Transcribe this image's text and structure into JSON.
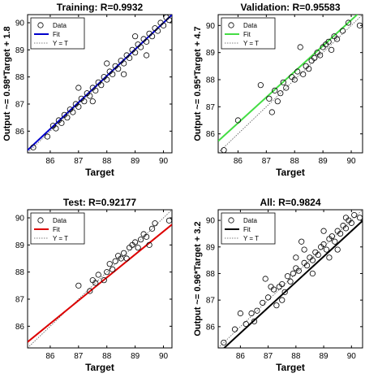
{
  "chart_data": [
    {
      "type": "scatter",
      "title": "Training: R=0.9932",
      "xlabel": "Target",
      "ylabel": "Output ~= 0.98*Target + 1.8",
      "xlim": [
        85.2,
        90.3
      ],
      "ylim": [
        85.2,
        90.3
      ],
      "xticks": [
        86,
        87,
        88,
        89,
        90
      ],
      "yticks": [
        86,
        87,
        88,
        89,
        90
      ],
      "grid": false,
      "legend": {
        "placement": "top-left",
        "entries": [
          "Data",
          "Fit",
          "Y = T"
        ]
      },
      "fit": {
        "slope": 0.98,
        "intercept": 1.8,
        "color": "#0000cc"
      },
      "identity_line_color": "#555555",
      "marker_color": "#000000",
      "points": [
        [
          85.4,
          85.4
        ],
        [
          85.9,
          85.8
        ],
        [
          86.1,
          86.2
        ],
        [
          86.2,
          86.1
        ],
        [
          86.3,
          86.4
        ],
        [
          86.4,
          86.3
        ],
        [
          86.5,
          86.6
        ],
        [
          86.6,
          86.5
        ],
        [
          86.7,
          86.8
        ],
        [
          86.8,
          86.7
        ],
        [
          86.9,
          87.0
        ],
        [
          87.0,
          86.9
        ],
        [
          87.1,
          87.2
        ],
        [
          87.2,
          87.1
        ],
        [
          87.3,
          87.4
        ],
        [
          87.4,
          87.3
        ],
        [
          87.5,
          87.6
        ],
        [
          87.6,
          87.5
        ],
        [
          87.7,
          87.8
        ],
        [
          87.8,
          87.7
        ],
        [
          87.9,
          88.0
        ],
        [
          88.0,
          87.9
        ],
        [
          88.1,
          88.2
        ],
        [
          88.2,
          88.1
        ],
        [
          88.3,
          88.4
        ],
        [
          88.4,
          88.3
        ],
        [
          88.5,
          88.6
        ],
        [
          88.6,
          88.5
        ],
        [
          88.7,
          88.8
        ],
        [
          88.8,
          88.7
        ],
        [
          88.9,
          89.0
        ],
        [
          89.0,
          88.9
        ],
        [
          89.1,
          89.2
        ],
        [
          89.2,
          89.1
        ],
        [
          89.3,
          89.4
        ],
        [
          89.4,
          89.3
        ],
        [
          89.5,
          89.6
        ],
        [
          89.6,
          89.5
        ],
        [
          89.7,
          89.8
        ],
        [
          89.8,
          89.7
        ],
        [
          89.9,
          90.0
        ],
        [
          90.0,
          89.9
        ],
        [
          90.1,
          90.2
        ],
        [
          90.2,
          90.1
        ],
        [
          87.0,
          87.6
        ],
        [
          87.5,
          87.1
        ],
        [
          88.0,
          88.5
        ],
        [
          88.6,
          88.1
        ],
        [
          89.0,
          89.5
        ],
        [
          89.4,
          88.8
        ]
      ]
    },
    {
      "type": "scatter",
      "title": "Validation: R=0.95583",
      "xlabel": "Target",
      "ylabel": "Output ~= 0.95*Target + 4.7",
      "xlim": [
        85.3,
        90.4
      ],
      "ylim": [
        85.3,
        90.4
      ],
      "xticks": [
        86,
        87,
        88,
        89,
        90
      ],
      "yticks": [
        86,
        87,
        88,
        89,
        90
      ],
      "grid": false,
      "legend": {
        "placement": "top-left",
        "entries": [
          "Data",
          "Fit",
          "Y = T"
        ]
      },
      "fit": {
        "slope": 0.95,
        "intercept": 4.7,
        "color": "#44dd44"
      },
      "identity_line_color": "#555555",
      "marker_color": "#000000",
      "points": [
        [
          85.5,
          85.4
        ],
        [
          86.0,
          86.5
        ],
        [
          86.8,
          87.8
        ],
        [
          87.1,
          87.3
        ],
        [
          87.2,
          86.8
        ],
        [
          87.3,
          87.6
        ],
        [
          87.4,
          87.2
        ],
        [
          87.5,
          87.5
        ],
        [
          87.6,
          87.9
        ],
        [
          87.7,
          87.7
        ],
        [
          87.9,
          88.1
        ],
        [
          88.0,
          88.0
        ],
        [
          88.1,
          88.3
        ],
        [
          88.2,
          89.2
        ],
        [
          88.3,
          88.2
        ],
        [
          88.4,
          88.5
        ],
        [
          88.5,
          88.4
        ],
        [
          88.6,
          88.7
        ],
        [
          88.7,
          88.8
        ],
        [
          88.8,
          89.0
        ],
        [
          88.9,
          88.9
        ],
        [
          89.0,
          89.2
        ],
        [
          89.1,
          89.3
        ],
        [
          89.2,
          89.4
        ],
        [
          89.3,
          89.1
        ],
        [
          89.4,
          89.6
        ],
        [
          89.5,
          89.5
        ],
        [
          89.7,
          89.8
        ],
        [
          89.9,
          90.1
        ],
        [
          90.3,
          90.0
        ]
      ]
    },
    {
      "type": "scatter",
      "title": "Test: R=0.92177",
      "xlabel": "Target",
      "ylabel": "",
      "xlim": [
        85.2,
        90.3
      ],
      "ylim": [
        85.2,
        90.3
      ],
      "xticks": [
        86,
        87,
        88,
        89,
        90
      ],
      "yticks": [
        86,
        87,
        88,
        89,
        90
      ],
      "grid": false,
      "legend": {
        "placement": "top-left",
        "entries": [
          "Data",
          "Fit",
          "Y = T"
        ]
      },
      "fit": {
        "slope": 0.85,
        "intercept": 13,
        "color": "#dd0000"
      },
      "identity_line_color": "#555555",
      "marker_color": "#000000",
      "points": [
        [
          87.0,
          87.5
        ],
        [
          87.4,
          87.3
        ],
        [
          87.5,
          87.7
        ],
        [
          87.6,
          87.6
        ],
        [
          87.7,
          87.9
        ],
        [
          87.9,
          87.7
        ],
        [
          88.0,
          88.0
        ],
        [
          88.1,
          88.3
        ],
        [
          88.2,
          88.1
        ],
        [
          88.3,
          88.4
        ],
        [
          88.4,
          88.6
        ],
        [
          88.5,
          88.5
        ],
        [
          88.6,
          88.7
        ],
        [
          88.7,
          88.5
        ],
        [
          88.8,
          88.9
        ],
        [
          88.9,
          89.0
        ],
        [
          89.0,
          89.1
        ],
        [
          89.1,
          88.9
        ],
        [
          89.2,
          89.2
        ],
        [
          89.3,
          89.4
        ],
        [
          89.4,
          89.3
        ],
        [
          89.5,
          89.0
        ],
        [
          89.6,
          89.6
        ],
        [
          89.7,
          89.8
        ],
        [
          90.2,
          89.9
        ]
      ]
    },
    {
      "type": "scatter",
      "title": "All: R=0.9824",
      "xlabel": "Target",
      "ylabel": "Output ~= 0.96*Target + 3.2",
      "xlim": [
        85.2,
        90.4
      ],
      "ylim": [
        85.2,
        90.4
      ],
      "xticks": [
        86,
        87,
        88,
        89,
        90
      ],
      "yticks": [
        86,
        87,
        88,
        89,
        90
      ],
      "grid": false,
      "legend": {
        "placement": "top-left",
        "entries": [
          "Data",
          "Fit",
          "Y = T"
        ]
      },
      "fit": {
        "slope": 0.96,
        "intercept": 3.2,
        "color": "#000000"
      },
      "identity_line_color": "#555555",
      "marker_color": "#000000",
      "points": [
        [
          85.4,
          85.4
        ],
        [
          85.8,
          85.9
        ],
        [
          86.0,
          86.5
        ],
        [
          86.2,
          86.1
        ],
        [
          86.4,
          86.5
        ],
        [
          86.6,
          86.6
        ],
        [
          86.8,
          86.9
        ],
        [
          86.9,
          87.8
        ],
        [
          87.0,
          87.1
        ],
        [
          87.2,
          87.4
        ],
        [
          87.3,
          86.8
        ],
        [
          87.4,
          87.5
        ],
        [
          87.5,
          87.6
        ],
        [
          87.6,
          87.3
        ],
        [
          87.7,
          87.9
        ],
        [
          87.8,
          87.7
        ],
        [
          87.9,
          88.0
        ],
        [
          88.0,
          88.2
        ],
        [
          88.1,
          88.1
        ],
        [
          88.2,
          89.2
        ],
        [
          88.3,
          88.4
        ],
        [
          88.4,
          88.3
        ],
        [
          88.5,
          88.6
        ],
        [
          88.6,
          88.5
        ],
        [
          88.7,
          88.8
        ],
        [
          88.8,
          88.7
        ],
        [
          88.9,
          89.0
        ],
        [
          89.0,
          89.1
        ],
        [
          89.1,
          88.9
        ],
        [
          89.2,
          89.3
        ],
        [
          89.3,
          89.4
        ],
        [
          89.4,
          89.2
        ],
        [
          89.5,
          89.6
        ],
        [
          89.6,
          89.5
        ],
        [
          89.7,
          89.8
        ],
        [
          89.8,
          89.7
        ],
        [
          89.9,
          90.0
        ],
        [
          90.0,
          89.9
        ],
        [
          90.1,
          90.2
        ],
        [
          90.3,
          90.1
        ],
        [
          87.5,
          87.0
        ],
        [
          88.0,
          88.6
        ],
        [
          88.6,
          88.0
        ],
        [
          89.0,
          89.6
        ],
        [
          89.5,
          88.9
        ],
        [
          86.5,
          86.2
        ],
        [
          87.1,
          87.5
        ],
        [
          89.2,
          88.6
        ],
        [
          88.3,
          88.9
        ],
        [
          89.8,
          90.1
        ]
      ]
    }
  ]
}
